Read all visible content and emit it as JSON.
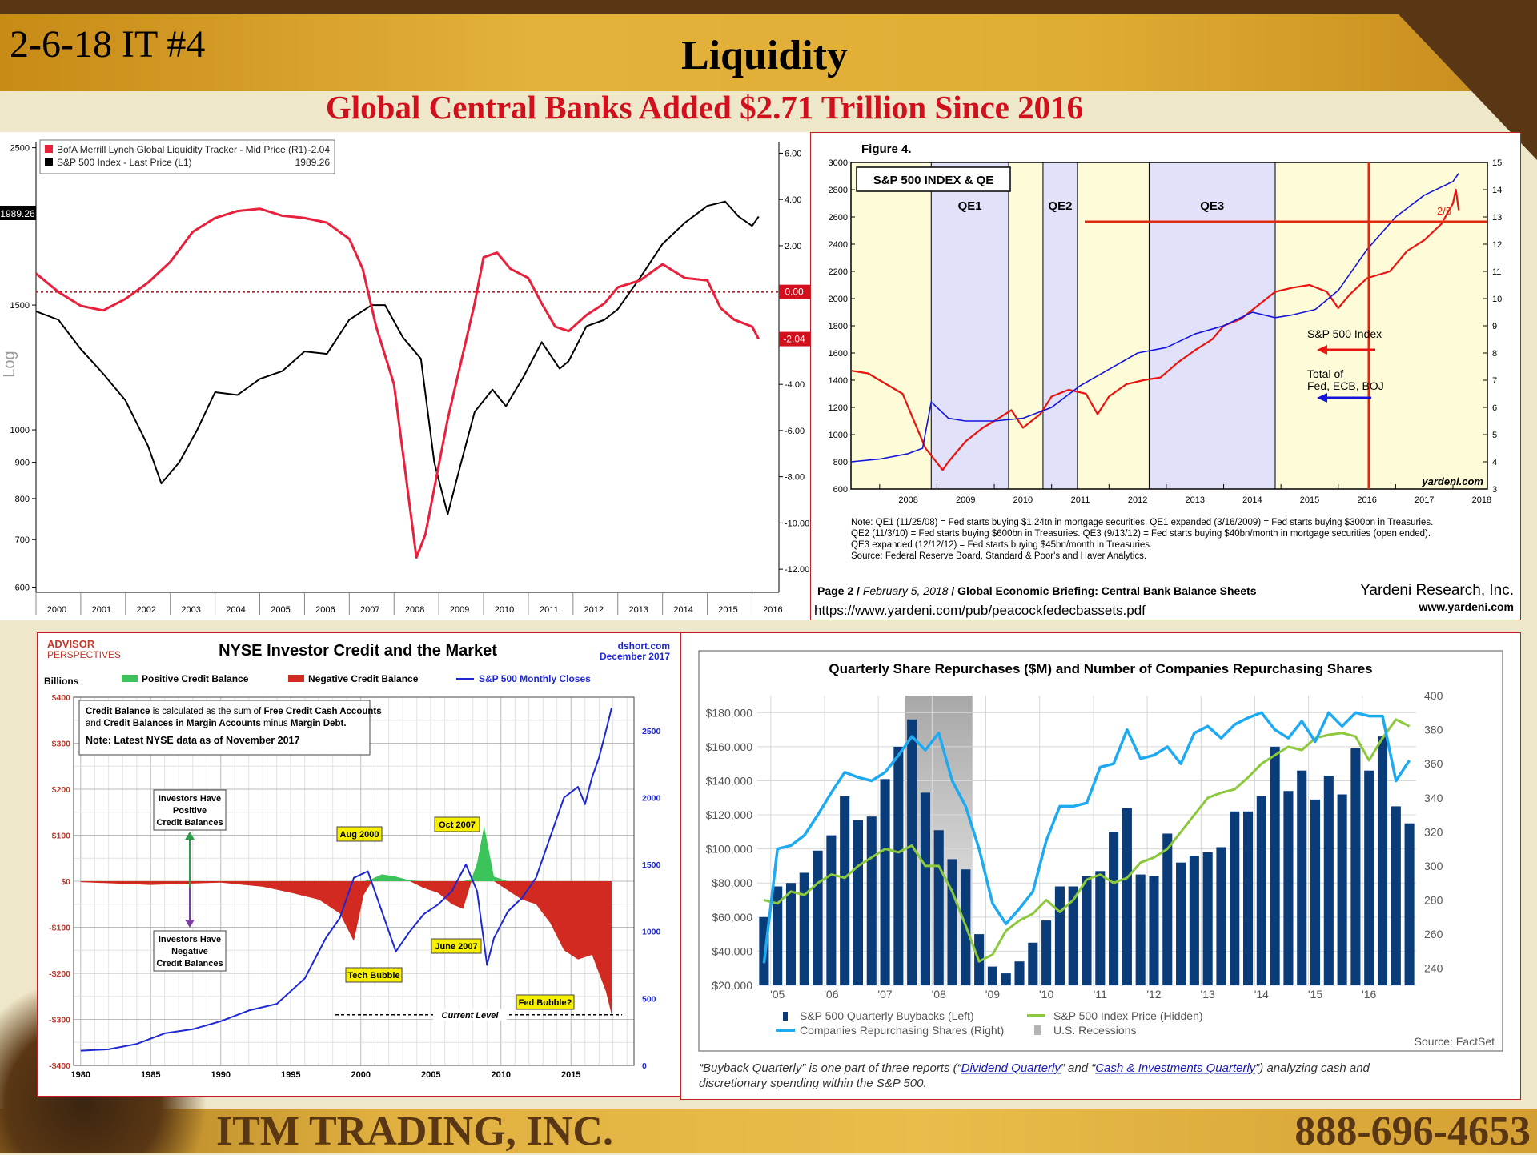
{
  "header": {
    "slide_id": "2-6-18 IT #4",
    "title": "Liquidity",
    "subtitle": "Global Central Banks Added $2.71 Trillion Since 2016"
  },
  "footer": {
    "company": "ITM TRADING, INC.",
    "phone": "888-696-4653"
  },
  "colors": {
    "brown": "#5a3714",
    "gold": "#d9a528",
    "subtitle_red": "#d0101c",
    "cream": "#efe7c9"
  },
  "chart_data": [
    {
      "id": "bofa",
      "type": "line",
      "legend": [
        {
          "label": "BofA Merrill Lynch Global Liquidity Tracker - Mid Price (R1)",
          "value": "-2.04",
          "color": "#e8203c"
        },
        {
          "label": "S&P 500 Index - Last Price (L1)",
          "value": "1989.26",
          "color": "#000000"
        }
      ],
      "ylabel_left": "Log",
      "left_ticks": [
        "2500",
        "1500",
        "1000",
        "900",
        "800",
        "700",
        "600"
      ],
      "right_ticks": [
        "6.00",
        "4.00",
        "2.00",
        "-4.00",
        "-6.00",
        "-8.00",
        "-10.00",
        "-12.00"
      ],
      "x_ticks": [
        "2000",
        "2001",
        "2002",
        "2003",
        "2004",
        "2005",
        "2006",
        "2007",
        "2008",
        "2009",
        "2010",
        "2011",
        "2012",
        "2013",
        "2014",
        "2015",
        "2016"
      ],
      "last_left_label": "1989.26",
      "zero_label": "0.00",
      "last_right_label": "-2.04",
      "ylim_left": [
        590,
        2550
      ],
      "ylim_right": [
        -13,
        6.5
      ],
      "series": [
        {
          "name": "S&P 500 Index - Last Price (L1)",
          "axis": "left",
          "x": [
            2000.0,
            2000.5,
            2001.0,
            2001.5,
            2002.0,
            2002.5,
            2002.8,
            2003.2,
            2003.6,
            2004.0,
            2004.5,
            2005.0,
            2005.5,
            2006.0,
            2006.5,
            2007.0,
            2007.5,
            2007.8,
            2008.2,
            2008.6,
            2008.9,
            2009.2,
            2009.5,
            2009.8,
            2010.2,
            2010.5,
            2010.9,
            2011.3,
            2011.7,
            2011.9,
            2012.3,
            2012.7,
            2013.0,
            2013.5,
            2014.0,
            2014.5,
            2015.0,
            2015.4,
            2015.7,
            2016.0,
            2016.15
          ],
          "y": [
            1470,
            1430,
            1300,
            1200,
            1100,
            950,
            840,
            900,
            1000,
            1130,
            1120,
            1180,
            1210,
            1290,
            1280,
            1430,
            1500,
            1500,
            1350,
            1260,
            900,
            760,
            900,
            1060,
            1140,
            1080,
            1190,
            1330,
            1220,
            1250,
            1400,
            1430,
            1480,
            1640,
            1830,
            1960,
            2070,
            2100,
            2000,
            1940,
            2000
          ]
        },
        {
          "name": "BofA Merrill Lynch Global Liquidity Tracker - Mid Price (R1)",
          "axis": "right",
          "x": [
            2000.0,
            2000.5,
            2001.0,
            2001.5,
            2002.0,
            2002.5,
            2003.0,
            2003.5,
            2004.0,
            2004.5,
            2005.0,
            2005.5,
            2006.0,
            2006.5,
            2007.0,
            2007.3,
            2007.6,
            2008.0,
            2008.3,
            2008.5,
            2008.7,
            2008.9,
            2009.2,
            2009.5,
            2009.8,
            2010.0,
            2010.3,
            2010.6,
            2011.0,
            2011.3,
            2011.6,
            2011.9,
            2012.3,
            2012.7,
            2013.0,
            2013.5,
            2014.0,
            2014.5,
            2015.0,
            2015.3,
            2015.6,
            2016.0,
            2016.15
          ],
          "y": [
            0.8,
            0.0,
            -0.6,
            -0.8,
            -0.3,
            0.4,
            1.3,
            2.6,
            3.2,
            3.5,
            3.6,
            3.3,
            3.2,
            3.0,
            2.3,
            1.0,
            -1.5,
            -4.0,
            -8.5,
            -11.5,
            -10.5,
            -8.5,
            -5.5,
            -3.0,
            -0.5,
            1.5,
            1.7,
            1.0,
            0.6,
            -0.5,
            -1.5,
            -1.7,
            -1.0,
            -0.5,
            0.2,
            0.5,
            1.2,
            0.6,
            0.5,
            -0.7,
            -1.2,
            -1.5,
            -2.04
          ]
        }
      ]
    },
    {
      "id": "yardeni",
      "type": "line",
      "figure_label": "Figure 4.",
      "box_title": "S&P 500 INDEX & QE",
      "shaded_regions": [
        {
          "label": "QE1",
          "start": 2008.9,
          "end": 2010.25,
          "color": "#e1e1fa"
        },
        {
          "label": "QE2",
          "start": 2010.85,
          "end": 2011.45,
          "color": "#e1e1fa"
        },
        {
          "label": "QE3",
          "start": 2012.7,
          "end": 2014.9,
          "color": "#e1e1fa"
        }
      ],
      "left_ticks": [
        "3000",
        "2800",
        "2600",
        "2400",
        "2200",
        "2000",
        "1800",
        "1600",
        "1400",
        "1200",
        "1000",
        "800",
        "600"
      ],
      "right_ticks": [
        "15",
        "14",
        "13",
        "12",
        "11",
        "10",
        "9",
        "8",
        "7",
        "6",
        "5",
        "4",
        "3"
      ],
      "x_ticks": [
        "2008",
        "2009",
        "2010",
        "2011",
        "2012",
        "2013",
        "2014",
        "2015",
        "2016",
        "2017",
        "2018"
      ],
      "ylim_left": [
        600,
        3000
      ],
      "ylim_right": [
        3,
        15
      ],
      "annotations": {
        "date": "2/5",
        "sp_label": "S&P 500 Index",
        "total_label": "Total of\nFed, ECB, BOJ",
        "watermark": "yardeni.com"
      },
      "series": [
        {
          "name": "S&P 500 Index",
          "axis": "left",
          "color": "#e8140f",
          "x": [
            2007.5,
            2007.8,
            2008.0,
            2008.4,
            2008.8,
            2009.1,
            2009.2,
            2009.5,
            2009.8,
            2010.0,
            2010.3,
            2010.5,
            2010.8,
            2011.0,
            2011.3,
            2011.6,
            2011.8,
            2012.0,
            2012.3,
            2012.6,
            2012.9,
            2013.2,
            2013.5,
            2013.8,
            2014.0,
            2014.3,
            2014.6,
            2014.9,
            2015.2,
            2015.5,
            2015.8,
            2016.0,
            2016.2,
            2016.5,
            2016.9,
            2017.2,
            2017.5,
            2017.8,
            2018.0,
            2018.05,
            2018.1
          ],
          "y": [
            1470,
            1450,
            1400,
            1300,
            900,
            740,
            800,
            950,
            1050,
            1100,
            1180,
            1050,
            1150,
            1280,
            1330,
            1300,
            1150,
            1280,
            1370,
            1400,
            1420,
            1530,
            1620,
            1700,
            1800,
            1850,
            1950,
            2050,
            2080,
            2100,
            2050,
            1930,
            2030,
            2150,
            2200,
            2350,
            2430,
            2550,
            2700,
            2800,
            2650
          ]
        },
        {
          "name": "Total of Fed, ECB, BOJ",
          "axis": "right",
          "color": "#1414dc",
          "x": [
            2007.5,
            2008.0,
            2008.5,
            2008.75,
            2008.9,
            2009.2,
            2009.5,
            2010.0,
            2010.5,
            2011.0,
            2011.5,
            2012.0,
            2012.5,
            2013.0,
            2013.5,
            2014.0,
            2014.5,
            2014.9,
            2015.2,
            2015.6,
            2016.0,
            2016.5,
            2017.0,
            2017.5,
            2018.0,
            2018.1
          ],
          "y": [
            4.0,
            4.1,
            4.3,
            4.5,
            6.2,
            5.6,
            5.5,
            5.5,
            5.6,
            6.0,
            6.8,
            7.4,
            8.0,
            8.2,
            8.7,
            9.0,
            9.5,
            9.3,
            9.4,
            9.6,
            10.3,
            11.8,
            13.0,
            13.8,
            14.3,
            14.6
          ]
        }
      ],
      "note_lines": [
        "Note: QE1 (11/25/08) = Fed starts buying $1.24tn in mortgage securities. QE1 expanded (3/16/2009) = Fed starts buying $300bn in Treasuries.",
        "QE2 (11/3/10) = Fed starts buying $600bn in Treasuries. QE3 (9/13/12) = Fed starts buying $40bn/month in mortgage securities (open ended).",
        "QE3 expanded (12/12/12) = Fed starts buying $45bn/month in Treasuries.",
        "Source: Federal Reserve Board, Standard & Poor's and Haver Analytics."
      ],
      "footer_left_page": "Page 2",
      "footer_left_date": "February 5, 2018",
      "footer_left_title": "Global Economic Briefing: Central Bank Balance Sheets",
      "footer_right": "Yardeni Research, Inc.",
      "footer_right_url": "www.yardeni.com",
      "url": "https://www.yardeni.com/pub/peacockfedecbassets.pdf"
    },
    {
      "id": "nyse",
      "type": "area",
      "title": "NYSE Investor Credit and the Market",
      "logo_top": "ADVISOR",
      "logo_bottom": "PERSPECTIVES",
      "source_top": "dshort.com",
      "source_bottom": "December 2017",
      "ylabel": "Billions",
      "legend": [
        {
          "label": "Positive Credit Balance",
          "color": "#3cc35a"
        },
        {
          "label": "Negative Credit Balance",
          "color": "#d22a20"
        },
        {
          "label": "S&P 500 Monthly Closes",
          "color": "#1e28d2"
        }
      ],
      "info_line1_a": "Credit Balance",
      "info_line1_b": " is calculated as the sum of ",
      "info_line1_c": "Free Credit Cash Accounts",
      "info_line2_a": "and ",
      "info_line2_b": "Credit Balances in Margin Accounts",
      "info_line2_c": " minus ",
      "info_line2_d": "Margin Debt.",
      "info_note": "Note: Latest NYSE data as of November 2017",
      "left_ticks": [
        "$400",
        "$300",
        "$200",
        "$100",
        "$0",
        "-$100",
        "-$200",
        "-$300",
        "-$400"
      ],
      "right_ticks": [
        "2500",
        "2000",
        "1500",
        "1000",
        "500",
        "0"
      ],
      "x_ticks": [
        "1980",
        "1985",
        "1990",
        "1995",
        "2000",
        "2005",
        "2010",
        "2015"
      ],
      "ylim_left": [
        -400,
        400
      ],
      "ylim_right": [
        0,
        2750
      ],
      "callouts": {
        "positive_box": [
          "Investors Have",
          "Positive",
          "Credit Balances"
        ],
        "negative_box": [
          "Investors Have",
          "Negative",
          "Credit Balances"
        ],
        "aug2000": "Aug 2000",
        "oct2007": "Oct 2007",
        "june2007": "June 2007",
        "tech": "Tech Bubble",
        "fed": "Fed Bubble?",
        "current": "Current Level"
      },
      "credit_balance": {
        "x": [
          1980,
          1985,
          1990,
          1993,
          1995,
          1997,
          1998.5,
          1999.5,
          2000.2,
          2000.8,
          2001.5,
          2002.5,
          2003.5,
          2004.5,
          2005.5,
          2006.5,
          2007.3,
          2007.9,
          2008.3,
          2008.8,
          2009.5,
          2010.5,
          2011.5,
          2012.5,
          2013.5,
          2014.5,
          2015.5,
          2016.5,
          2017.0,
          2017.5,
          2017.9
        ],
        "y": [
          -2,
          -8,
          -3,
          -12,
          -25,
          -40,
          -70,
          -130,
          -30,
          5,
          15,
          10,
          2,
          -15,
          -25,
          -50,
          -60,
          5,
          40,
          120,
          10,
          -20,
          -40,
          -50,
          -90,
          -150,
          -170,
          -160,
          -200,
          -240,
          -290
        ]
      },
      "sp500": {
        "x": [
          1980,
          1982,
          1984,
          1986,
          1988,
          1990,
          1992,
          1994,
          1996,
          1997.5,
          1998.5,
          1999.5,
          2000.5,
          2001.5,
          2002.5,
          2003.5,
          2004.5,
          2005.5,
          2006.5,
          2007.5,
          2008.3,
          2009.0,
          2009.5,
          2010.5,
          2011.5,
          2012.5,
          2013.5,
          2014.5,
          2015.5,
          2016.0,
          2016.5,
          2017.0,
          2017.5,
          2017.9
        ],
        "y": [
          110,
          120,
          160,
          240,
          270,
          330,
          410,
          460,
          650,
          950,
          1100,
          1400,
          1450,
          1150,
          850,
          1000,
          1130,
          1200,
          1300,
          1500,
          1300,
          750,
          950,
          1150,
          1250,
          1400,
          1700,
          2000,
          2080,
          1950,
          2150,
          2300,
          2500,
          2670
        ]
      }
    },
    {
      "id": "buybacks",
      "type": "bar",
      "title": "Quarterly Share Repurchases ($M) and Number of Companies Repurchasing Shares",
      "left_ticks": [
        "$180,000",
        "$160,000",
        "$140,000",
        "$120,000",
        "$100,000",
        "$80,000",
        "$60,000",
        "$40,000",
        "$20,000"
      ],
      "right_ticks": [
        "400",
        "380",
        "360",
        "340",
        "320",
        "300",
        "280",
        "260",
        "240"
      ],
      "x_ticks": [
        "'05",
        "'06",
        "'07",
        "'08",
        "'09",
        "'10",
        "'11",
        "'12",
        "'13",
        "'14",
        "'15",
        "'16"
      ],
      "ylim_left": [
        20000,
        190000
      ],
      "ylim_right": [
        230,
        400
      ],
      "recession": {
        "start_index": 11,
        "end_index": 16
      },
      "legend": [
        {
          "label": "S&P 500 Quarterly Buybacks (Left)",
          "color": "#0a3c7a"
        },
        {
          "label": "S&P 500 Index Price (Hidden)",
          "color": "#8cc83c"
        },
        {
          "label": "Companies Repurchasing Shares (Right)",
          "color": "#1eaaf0"
        },
        {
          "label": "U.S. Recessions",
          "color": "#b4b4b4"
        }
      ],
      "source": "Source: FactSet",
      "caption_pre": "“Buyback Quarterly” is one part of three reports (“",
      "caption_link1": "Dividend Quarterly",
      "caption_mid": "” and “",
      "caption_link2": "Cash & Investments Quarterly",
      "caption_post1": "”) analyzing cash and",
      "caption_line2": "discretionary spending within the S&P 500.",
      "series": [
        {
          "name": "S&P 500 Quarterly Buybacks (Left)",
          "values": [
            60000,
            78000,
            80000,
            86000,
            99000,
            108000,
            131000,
            117000,
            119000,
            141000,
            160000,
            176000,
            133000,
            111000,
            94000,
            88000,
            50000,
            31000,
            27000,
            34000,
            45000,
            58000,
            78000,
            78000,
            84000,
            87000,
            110000,
            124000,
            85000,
            84000,
            109000,
            92000,
            96000,
            98000,
            101000,
            122000,
            122000,
            131000,
            160000,
            134000,
            146000,
            129000,
            143000,
            132000,
            159000,
            146000,
            166000,
            125000,
            115000
          ]
        },
        {
          "name": "Companies Repurchasing Shares (Right)",
          "values": [
            243,
            310,
            312,
            318,
            330,
            343,
            355,
            352,
            350,
            355,
            365,
            376,
            368,
            378,
            350,
            335,
            310,
            278,
            266,
            275,
            285,
            315,
            335,
            335,
            337,
            358,
            360,
            380,
            363,
            365,
            370,
            360,
            378,
            382,
            375,
            383,
            387,
            390,
            380,
            375,
            385,
            373,
            390,
            382,
            390,
            388,
            388,
            350,
            362
          ]
        },
        {
          "name": "S&P 500 Index Price (Hidden)",
          "values": [
            280,
            278,
            285,
            283,
            290,
            295,
            293,
            300,
            305,
            310,
            308,
            312,
            300,
            300,
            285,
            265,
            244,
            248,
            262,
            268,
            272,
            280,
            273,
            280,
            292,
            295,
            290,
            293,
            302,
            305,
            310,
            320,
            330,
            340,
            343,
            345,
            352,
            360,
            365,
            370,
            368,
            375,
            377,
            378,
            376,
            362,
            375,
            386,
            382
          ]
        }
      ]
    }
  ]
}
